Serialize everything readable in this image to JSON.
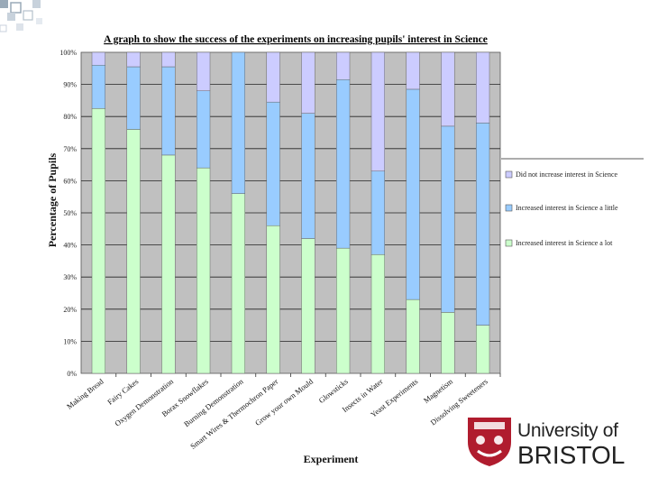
{
  "chart_data": {
    "type": "bar",
    "stacked": true,
    "percent": true,
    "title": "A graph to show the success of the experiments on increasing pupils' interest in Science",
    "xlabel": "Experiment",
    "ylabel": "Percentage of Pupils",
    "ylim": [
      0,
      100
    ],
    "yticks": [
      "0%",
      "10%",
      "20%",
      "30%",
      "40%",
      "50%",
      "60%",
      "70%",
      "80%",
      "90%",
      "100%"
    ],
    "categories": [
      "Making Bread",
      "Fairy Cakes",
      "Oxygen Demonstration",
      "Borax Snowflakes",
      "Burning Demonstration",
      "Smart Wires & Thermochron Paper",
      "Grow your own Mould",
      "Glowsticks",
      "Insects in Water",
      "Yeast Experiments",
      "Magnetism",
      "Dissolving Sweeteners"
    ],
    "series": [
      {
        "name": "Increased interest in Science a lot",
        "color": "#ccffcc",
        "values": [
          82.5,
          76,
          68,
          64,
          56,
          46,
          42,
          39,
          37,
          23,
          19,
          15
        ]
      },
      {
        "name": "Increased interest in Science a little",
        "color": "#99ccff",
        "values": [
          13.5,
          19.5,
          27.5,
          24,
          44,
          38.5,
          39,
          52.5,
          26,
          65.5,
          58,
          63
        ]
      },
      {
        "name": "Did not increase interest in Science",
        "color": "#ccccff",
        "values": [
          4,
          4.5,
          4.5,
          12,
          0,
          15.5,
          19,
          8.5,
          37,
          11.5,
          23,
          22
        ]
      }
    ],
    "legend_position": "right",
    "grid": true,
    "plot_background": "#c0c0c0"
  },
  "logo": {
    "line1": "University of",
    "line2": "BRISTOL"
  }
}
